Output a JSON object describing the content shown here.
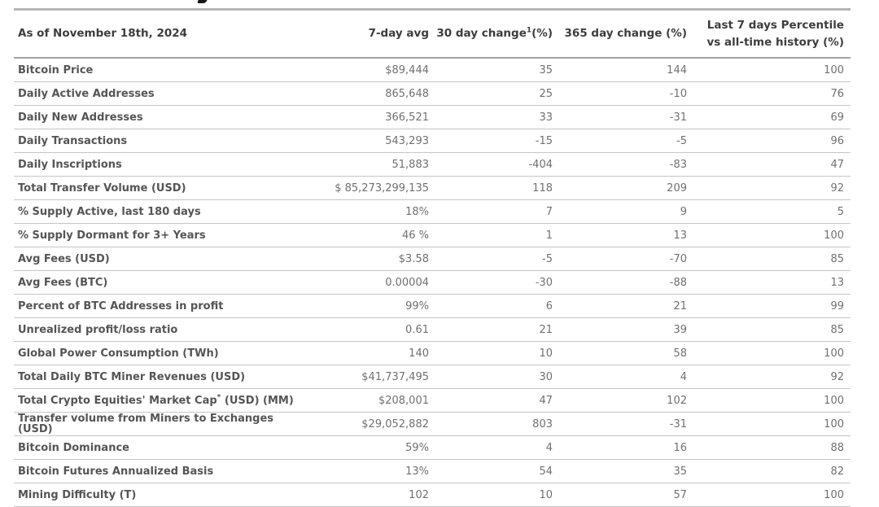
{
  "colors": {
    "background": "#ffffff",
    "top_rule": "#b5b5b5",
    "header_border": "#a3a3a3",
    "row_border": "#c6c6c6",
    "header_text": "#3d3d3d",
    "label_text": "#555555",
    "value_text": "#707070"
  },
  "table": {
    "header": {
      "date_label": "As of November 18th, 2024",
      "col_7day": "7-day avg",
      "col_30day": {
        "text": "30 day change",
        "sup": "1",
        "suffix": "(%)"
      },
      "col_365day": "365 day change (%)",
      "col_percentile_line1": "Last 7 days Percentile",
      "col_percentile_line2": "vs all-time history (%)"
    },
    "rows": [
      {
        "label": "Bitcoin Price",
        "avg": "$89,444",
        "change30": "35",
        "change365": "144",
        "percentile": "100"
      },
      {
        "label": "Daily Active Addresses",
        "avg": "865,648",
        "change30": "25",
        "change365": "-10",
        "percentile": "76"
      },
      {
        "label": "Daily New Addresses",
        "avg": "366,521",
        "change30": "33",
        "change365": "-31",
        "percentile": "69"
      },
      {
        "label": "Daily Transactions",
        "avg": "543,293",
        "change30": "-15",
        "change365": "-5",
        "percentile": "96"
      },
      {
        "label": "Daily Inscriptions",
        "avg": "51,883",
        "change30": "-404",
        "change365": "-83",
        "percentile": "47"
      },
      {
        "label": "Total Transfer Volume (USD)",
        "avg": "$ 85,273,299,135",
        "change30": "118",
        "change365": "209",
        "percentile": "92"
      },
      {
        "label": "% Supply Active, last 180 days",
        "avg": "18%",
        "change30": "7",
        "change365": "9",
        "percentile": "5"
      },
      {
        "label": "% Supply Dormant for 3+ Years",
        "avg": "46 %",
        "change30": "1",
        "change365": "13",
        "percentile": "100"
      },
      {
        "label": "Avg Fees (USD)",
        "avg": "$3.58",
        "change30": "-5",
        "change365": "-70",
        "percentile": "85"
      },
      {
        "label": "Avg Fees (BTC)",
        "avg": "0.00004",
        "change30": "-30",
        "change365": "-88",
        "percentile": "13"
      },
      {
        "label": "Percent of BTC Addresses in profit",
        "avg": "99%",
        "change30": "6",
        "change365": "21",
        "percentile": "99"
      },
      {
        "label": "Unrealized profit/loss ratio",
        "avg": "0.61",
        "change30": "21",
        "change365": "39",
        "percentile": "85"
      },
      {
        "label": "Global Power Consumption (TWh)",
        "avg": "140",
        "change30": "10",
        "change365": "58",
        "percentile": "100"
      },
      {
        "label": "Total Daily BTC Miner Revenues (USD)",
        "avg": "$41,737,495",
        "change30": "30",
        "change365": "4",
        "percentile": "92"
      },
      {
        "label": "Total Crypto Equities' Market Cap",
        "label_sup": "*",
        "label_suffix": " (USD) (MM)",
        "avg": "$208,001",
        "change30": "47",
        "change365": "102",
        "percentile": "100"
      },
      {
        "label": "Transfer volume from Miners to Exchanges (USD)",
        "avg": "$29,052,882",
        "change30": "803",
        "change365": "-31",
        "percentile": "100"
      },
      {
        "label": "Bitcoin Dominance",
        "avg": "59%",
        "change30": "4",
        "change365": "16",
        "percentile": "88"
      },
      {
        "label": "Bitcoin Futures Annualized Basis",
        "avg": "13%",
        "change30": "54",
        "change365": "35",
        "percentile": "82"
      },
      {
        "label": "Mining Difficulty (T)",
        "avg": "102",
        "change30": "10",
        "change365": "57",
        "percentile": "100"
      }
    ]
  }
}
